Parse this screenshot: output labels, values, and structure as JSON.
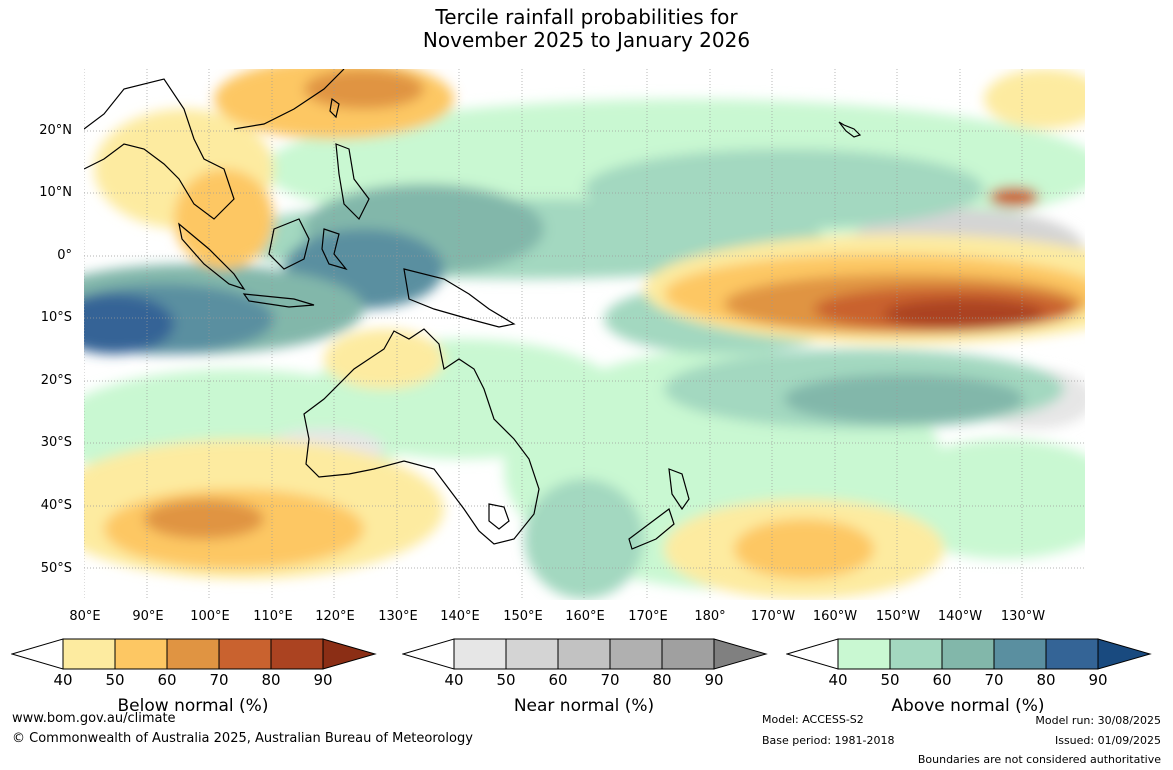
{
  "title": {
    "line1": "Tercile rainfall probabilities for",
    "line2": "November 2025 to January 2026"
  },
  "map": {
    "latitude_labels": [
      "20°N",
      "10°N",
      "0°",
      "10°S",
      "20°S",
      "30°S",
      "40°S",
      "50°S"
    ],
    "longitude_labels": [
      "80°E",
      "90°E",
      "100°E",
      "110°E",
      "120°E",
      "130°E",
      "140°E",
      "150°E",
      "160°E",
      "170°E",
      "180°",
      "170°W",
      "160°W",
      "150°W",
      "140°W",
      "130°W"
    ],
    "lat_range": [
      -55,
      30
    ],
    "lon_range": [
      80,
      240
    ]
  },
  "legends": [
    {
      "title": "Below normal (%)",
      "ticks": [
        "40",
        "50",
        "60",
        "70",
        "80",
        "90"
      ],
      "colors": [
        "#ffffff",
        "#fdeba0",
        "#fdc763",
        "#e09442",
        "#c9622f",
        "#ab4321",
        "#8b2e15"
      ]
    },
    {
      "title": "Near normal (%)",
      "ticks": [
        "40",
        "50",
        "60",
        "70",
        "80",
        "90"
      ],
      "colors": [
        "#ffffff",
        "#e6e6e6",
        "#d4d4d4",
        "#c2c2c2",
        "#b0b0b0",
        "#a0a0a0",
        "#808080"
      ]
    },
    {
      "title": "Above normal (%)",
      "ticks": [
        "40",
        "50",
        "60",
        "70",
        "80",
        "90"
      ],
      "colors": [
        "#ffffff",
        "#c9f8d2",
        "#a3d8c0",
        "#82b7aa",
        "#5a8fa0",
        "#346496",
        "#194a7f"
      ]
    }
  ],
  "footer": {
    "website": "www.bom.gov.au/climate",
    "copyright": "© Commonwealth of Australia 2025, Australian Bureau of Meteorology",
    "model": "Model: ACCESS-S2",
    "base_period": "Base period: 1981-2018",
    "model_run": "Model run: 30/08/2025",
    "issued": "Issued: 01/09/2025",
    "disclaimer": "Boundaries are not considered authoritative"
  }
}
